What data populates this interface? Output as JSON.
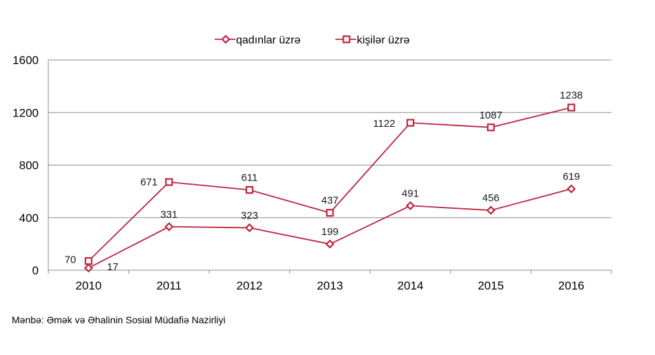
{
  "chart_data": {
    "type": "line",
    "categories": [
      "2010",
      "2011",
      "2012",
      "2013",
      "2014",
      "2015",
      "2016"
    ],
    "series": [
      {
        "name": "qadınlar üzrə",
        "values": [
          17,
          331,
          323,
          199,
          491,
          456,
          619
        ],
        "color": "#c0243f",
        "marker": "diamond"
      },
      {
        "name": "kişilər üzrə",
        "values": [
          70,
          671,
          611,
          437,
          1122,
          1087,
          1238
        ],
        "color": "#c0243f",
        "marker": "square"
      }
    ],
    "ylim": [
      0,
      1600
    ],
    "yticks": [
      "0",
      "400",
      "800",
      "1200",
      "1600"
    ],
    "grid": true,
    "legend_position": "top-center",
    "xlabel": "",
    "ylabel": ""
  },
  "source_note": "Mənbə:  Əmək və Əhalinin  Sosial Müdafiə Nazirliyi"
}
